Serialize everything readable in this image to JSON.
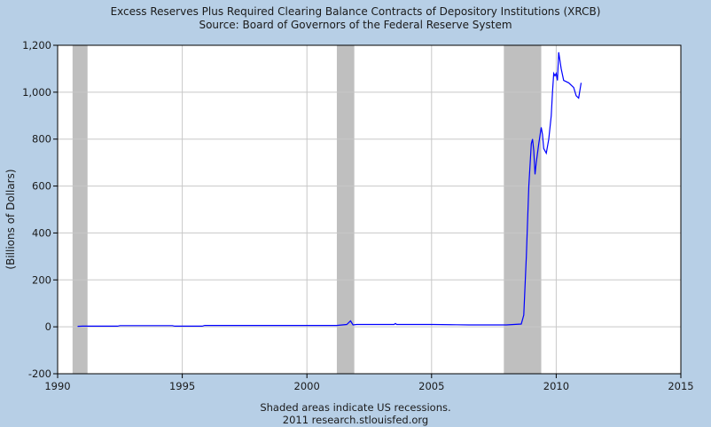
{
  "chart_data": {
    "type": "line",
    "title": "Excess Reserves Plus Required Clearing Balance Contracts of Depository Institutions (XRCB)",
    "subtitle": "Source: Board of Governors of the Federal Reserve System",
    "ylabel": "(Billions of Dollars)",
    "xlabel": "",
    "xlim": [
      1990,
      2015
    ],
    "ylim": [
      -200,
      1200
    ],
    "x_ticks": [
      "1990",
      "1995",
      "2000",
      "2005",
      "2010",
      "2015"
    ],
    "y_ticks": [
      "-200",
      "0",
      "200",
      "400",
      "600",
      "800",
      "1,000",
      "1,200"
    ],
    "grid": true,
    "line_color": "#0000ff",
    "recessions": [
      [
        1990.6,
        1991.2
      ],
      [
        2001.2,
        2001.9
      ],
      [
        2007.9,
        2009.4
      ]
    ],
    "recession_color": "#bfbfbf",
    "series": [
      {
        "x": [
          1990.8,
          1991.0,
          1991.5,
          1992.0,
          1992.4,
          1992.5,
          1993.0,
          1994.0,
          1994.6,
          1994.7,
          1995.0,
          1995.8,
          1995.9,
          1996.5,
          1997.5,
          1998.5,
          1999.5,
          2000.5,
          2001.2,
          2001.6,
          2001.75,
          2001.85,
          2002.0,
          2002.2,
          2003.0,
          2003.5,
          2003.55,
          2003.6,
          2004.0,
          2005.0,
          2006.0,
          2006.5,
          2007.0,
          2007.5,
          2007.9,
          2008.0,
          2008.3,
          2008.6,
          2008.7,
          2008.8,
          2008.9,
          2009.0,
          2009.05,
          2009.1,
          2009.15,
          2009.2,
          2009.3,
          2009.4,
          2009.45,
          2009.5,
          2009.6,
          2009.7,
          2009.8,
          2009.85,
          2009.9,
          2009.95,
          2010.0,
          2010.05,
          2010.1,
          2010.2,
          2010.3,
          2010.5,
          2010.7,
          2010.8,
          2010.9,
          2011.0
        ],
        "y": [
          2,
          3,
          3,
          3,
          3,
          5,
          5,
          5,
          5,
          3,
          3,
          3,
          6,
          6,
          6,
          6,
          6,
          6,
          6,
          10,
          25,
          8,
          10,
          10,
          10,
          10,
          14,
          10,
          10,
          10,
          9,
          8,
          8,
          8,
          8,
          8,
          10,
          12,
          50,
          300,
          600,
          780,
          800,
          750,
          650,
          700,
          780,
          850,
          820,
          760,
          740,
          800,
          900,
          1000,
          1080,
          1070,
          1080,
          1050,
          1170,
          1100,
          1050,
          1040,
          1020,
          985,
          975,
          1040
        ]
      }
    ],
    "footer_line1": "Shaded areas indicate US recessions.",
    "footer_line2": "2011 research.stlouisfed.org"
  }
}
